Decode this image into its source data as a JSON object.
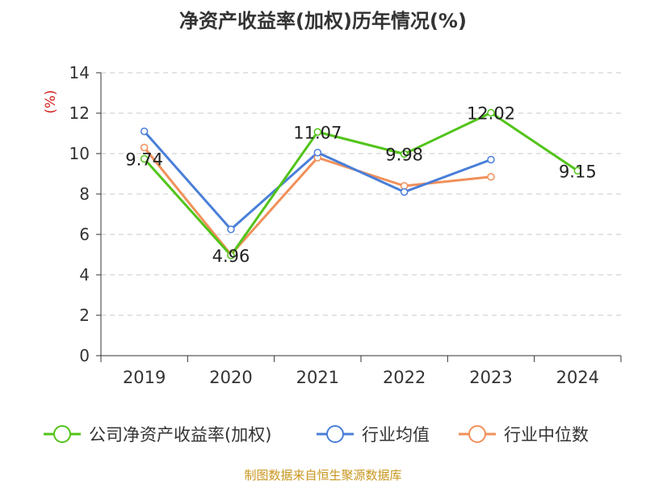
{
  "chart_data": {
    "type": "line",
    "title": "净资产收益率(加权)历年情况(%)",
    "ylabel": "(%)",
    "xlabel": "",
    "categories": [
      "2019",
      "2020",
      "2021",
      "2022",
      "2023",
      "2024"
    ],
    "ylim": [
      0,
      14
    ],
    "yticks": [
      0,
      2,
      4,
      6,
      8,
      10,
      12,
      14
    ],
    "grid": "horizontal dashed",
    "legend_position": "bottom",
    "series": [
      {
        "name": "公司净资产收益率(加权)",
        "color": "#52c41a",
        "values": [
          9.74,
          4.96,
          11.07,
          9.98,
          12.02,
          9.15
        ],
        "labels": [
          "9.74",
          "4.96",
          "11.07",
          "9.98",
          "12.02",
          "9.15"
        ]
      },
      {
        "name": "行业均值",
        "color": "#4a7fd8",
        "values": [
          11.1,
          6.25,
          10.05,
          8.1,
          9.7,
          null
        ]
      },
      {
        "name": "行业中位数",
        "color": "#f0905a",
        "values": [
          10.3,
          5.0,
          9.8,
          8.4,
          8.85,
          null
        ]
      }
    ]
  },
  "source": "制图数据来自恒生聚源数据库"
}
